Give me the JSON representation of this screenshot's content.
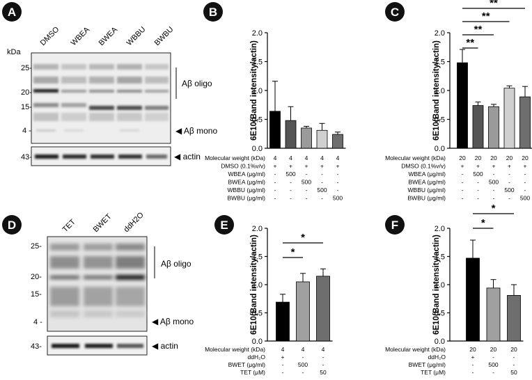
{
  "panel_letters": [
    "A",
    "B",
    "C",
    "D",
    "E",
    "F"
  ],
  "blot_A": {
    "kda_label": "kDa",
    "lanes": [
      "DMSO",
      "WBEA",
      "BWEA",
      "WBBU",
      "BWBU"
    ],
    "markers": [
      "25-",
      "20-",
      "15-",
      "4 -",
      "43-"
    ],
    "oligo_label": "Aβ oligo",
    "mono_label": "◀ Aβ mono",
    "actin_label": "◀ actin"
  },
  "blot_D": {
    "lanes": [
      "TET",
      "BWET",
      "ddH2O"
    ],
    "markers": [
      "25-",
      "20-",
      "15-",
      "4 -",
      "43-"
    ],
    "oligo_label": "Aβ oligo",
    "mono_label": "◀ Aβ mono",
    "actin_label": "◀ actin"
  },
  "chart_data": [
    {
      "panel": "B",
      "type": "bar",
      "ylabel": "6E10(Band intensity/actin)",
      "ylim": [
        0,
        2.0
      ],
      "yticks": [
        "0.0",
        "0.5",
        "1.0",
        "1.5",
        "2.0"
      ],
      "values": [
        0.64,
        0.48,
        0.35,
        0.31,
        0.24
      ],
      "errors": [
        0.52,
        0.24,
        0.03,
        0.12,
        0.04
      ],
      "colors": [
        "#000000",
        "#555555",
        "#9a9a9a",
        "#d0d0d0",
        "#6e6e6e"
      ],
      "sig": [],
      "table": [
        {
          "label": "Molecular weight (kDa)",
          "cells": [
            "4",
            "4",
            "4",
            "4",
            "4"
          ]
        },
        {
          "label": "DMSO (0.1%v/v)",
          "cells": [
            "+",
            "+",
            "+",
            "+",
            "+"
          ]
        },
        {
          "label": "WBEA (μg/ml)",
          "cells": [
            "-",
            "500",
            "-",
            "-",
            "-"
          ]
        },
        {
          "label": "BWEA (μg/ml)",
          "cells": [
            "-",
            "-",
            "500",
            "-",
            "-"
          ]
        },
        {
          "label": "WBBU (μg/ml)",
          "cells": [
            "-",
            "-",
            "-",
            "500",
            "-"
          ]
        },
        {
          "label": "BWBU (μg/ml)",
          "cells": [
            "-",
            "-",
            "-",
            "-",
            "500"
          ]
        }
      ]
    },
    {
      "panel": "C",
      "type": "bar",
      "ylabel": "6E10(Band intensity/actin)",
      "ylim": [
        0,
        2.0
      ],
      "yticks": [
        "0.0",
        "0.5",
        "1.0",
        "1.5",
        "2.0"
      ],
      "values": [
        1.48,
        0.74,
        0.72,
        1.04,
        0.89
      ],
      "errors": [
        0.23,
        0.06,
        0.04,
        0.04,
        0.18
      ],
      "colors": [
        "#000000",
        "#555555",
        "#9a9a9a",
        "#d0d0d0",
        "#6e6e6e"
      ],
      "sig": [
        {
          "from": 0,
          "to": 1,
          "label": "**"
        },
        {
          "from": 0,
          "to": 2,
          "label": "**"
        },
        {
          "from": 0,
          "to": 3,
          "label": "**"
        },
        {
          "from": 0,
          "to": 4,
          "label": "**"
        }
      ],
      "table": [
        {
          "label": "Molecular weight (kDa)",
          "cells": [
            "20",
            "20",
            "20",
            "20",
            "20"
          ]
        },
        {
          "label": "DMSO (0.1%v/v)",
          "cells": [
            "+",
            "+",
            "+",
            "+",
            "+"
          ]
        },
        {
          "label": "WBEA (μg/ml)",
          "cells": [
            "-",
            "500",
            "-",
            "-",
            "-"
          ]
        },
        {
          "label": "BWEA (μg/ml)",
          "cells": [
            "-",
            "-",
            "500",
            "-",
            "-"
          ]
        },
        {
          "label": "WBBU (μg/ml)",
          "cells": [
            "-",
            "-",
            "-",
            "500",
            "-"
          ]
        },
        {
          "label": "BWBU (μg/ml)",
          "cells": [
            "-",
            "-",
            "-",
            "-",
            "500"
          ]
        }
      ]
    },
    {
      "panel": "E",
      "type": "bar",
      "ylabel": "6E10(Band intensity/actin)",
      "ylim": [
        0,
        2.0
      ],
      "yticks": [
        "0.0",
        "0.5",
        "1.0",
        "1.5",
        "2.0"
      ],
      "values": [
        0.69,
        1.05,
        1.15
      ],
      "errors": [
        0.14,
        0.15,
        0.13
      ],
      "colors": [
        "#000000",
        "#a0a0a0",
        "#6e6e6e"
      ],
      "sig": [
        {
          "from": 0,
          "to": 1,
          "label": "*"
        },
        {
          "from": 0,
          "to": 2,
          "label": "*"
        }
      ],
      "table": [
        {
          "label": "Molecular weight (kDa)",
          "cells": [
            "4",
            "4",
            "4"
          ]
        },
        {
          "label": "ddH₂O",
          "cells": [
            "+",
            "-",
            "-"
          ]
        },
        {
          "label": "BWET (μg/ml)",
          "cells": [
            "-",
            "500",
            "-"
          ]
        },
        {
          "label": "TET (μM)",
          "cells": [
            "-",
            "-",
            "50"
          ]
        }
      ]
    },
    {
      "panel": "F",
      "type": "bar",
      "ylabel": "6E10(Band intensity/actin)",
      "ylim": [
        0,
        2.0
      ],
      "yticks": [
        "0.0",
        "0.5",
        "1.0",
        "1.5",
        "2.0"
      ],
      "values": [
        1.47,
        0.94,
        0.81
      ],
      "errors": [
        0.32,
        0.15,
        0.19
      ],
      "colors": [
        "#000000",
        "#a0a0a0",
        "#6e6e6e"
      ],
      "sig": [
        {
          "from": 0,
          "to": 1,
          "label": "*"
        },
        {
          "from": 0,
          "to": 2,
          "label": "*"
        }
      ],
      "table": [
        {
          "label": "Molecular weight (kDa)",
          "cells": [
            "20",
            "20",
            "20"
          ]
        },
        {
          "label": "ddH₂O",
          "cells": [
            "+",
            "-",
            "-"
          ]
        },
        {
          "label": "BWET (μg/ml)",
          "cells": [
            "-",
            "500",
            "-"
          ]
        },
        {
          "label": "TET (μM)",
          "cells": [
            "-",
            "-",
            "50"
          ]
        }
      ]
    }
  ]
}
